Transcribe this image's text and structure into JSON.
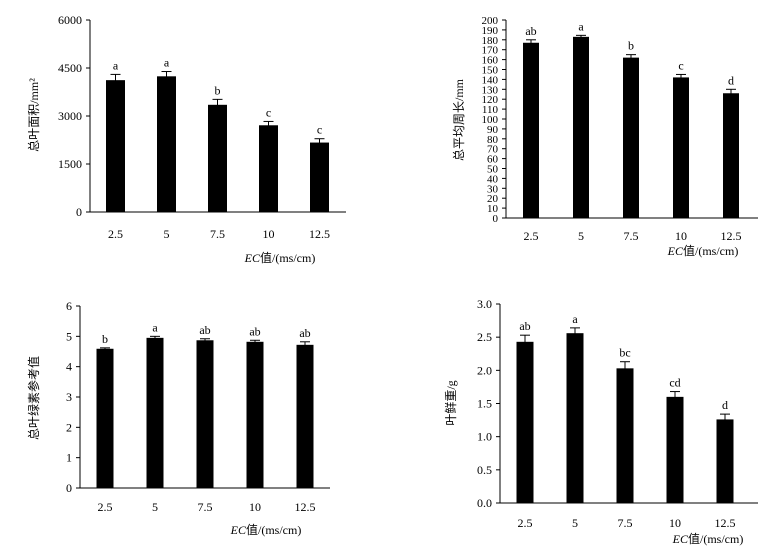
{
  "chart_data": [
    {
      "type": "bar",
      "categories": [
        "2.5",
        "5",
        "7.5",
        "10",
        "12.5"
      ],
      "values": [
        4120,
        4240,
        3350,
        2710,
        2170
      ],
      "errors": [
        180,
        150,
        170,
        120,
        120
      ],
      "labels": [
        "a",
        "a",
        "b",
        "c",
        "c"
      ],
      "ylabel": "总叶面积/mm²",
      "xlabel_italic": "EC",
      "xlabel": "值/(ms/cm)",
      "ylim": [
        0,
        6000
      ],
      "yticks": [
        "0",
        "1500",
        "3000",
        "4500",
        "6000"
      ],
      "grid": false
    },
    {
      "type": "bar",
      "categories": [
        "2.5",
        "5",
        "7.5",
        "10",
        "12.5"
      ],
      "values": [
        177,
        183,
        162,
        142,
        126
      ],
      "errors": [
        3,
        1.5,
        3,
        3,
        4
      ],
      "labels": [
        "ab",
        "a",
        "b",
        "c",
        "d"
      ],
      "ylabel": "总平均周长/mm",
      "xlabel_italic": "EC",
      "xlabel": "值/(ms/cm)",
      "ylim": [
        0,
        200
      ],
      "yticks": [
        "0",
        "10",
        "20",
        "30",
        "40",
        "50",
        "60",
        "70",
        "80",
        "90",
        "100",
        "110",
        "120",
        "130",
        "140",
        "150",
        "160",
        "170",
        "180",
        "190",
        "200"
      ],
      "grid": false
    },
    {
      "type": "bar",
      "categories": [
        "2.5",
        "5",
        "7.5",
        "10",
        "12.5"
      ],
      "values": [
        4.59,
        4.95,
        4.87,
        4.82,
        4.72
      ],
      "errors": [
        0.03,
        0.05,
        0.05,
        0.05,
        0.1
      ],
      "labels": [
        "b",
        "a",
        "ab",
        "ab",
        "ab"
      ],
      "ylabel": "总叶绿素参考值",
      "xlabel_italic": "EC",
      "xlabel": "值/(ms/cm)",
      "ylim": [
        0,
        6
      ],
      "yticks": [
        "0",
        "1",
        "2",
        "3",
        "4",
        "5",
        "6"
      ],
      "grid": false
    },
    {
      "type": "bar",
      "categories": [
        "2.5",
        "5",
        "7.5",
        "10",
        "12.5"
      ],
      "values": [
        2.43,
        2.56,
        2.03,
        1.6,
        1.26
      ],
      "errors": [
        0.1,
        0.08,
        0.1,
        0.08,
        0.08
      ],
      "labels": [
        "ab",
        "a",
        "bc",
        "cd",
        "d"
      ],
      "ylabel": "叶鲜重/g",
      "xlabel_italic": "EC",
      "xlabel": "值/(ms/cm)",
      "ylim": [
        0,
        3
      ],
      "yticks": [
        "0.0",
        "0.5",
        "1.0",
        "1.5",
        "2.0",
        "2.5",
        "3.0"
      ],
      "grid": false
    }
  ]
}
